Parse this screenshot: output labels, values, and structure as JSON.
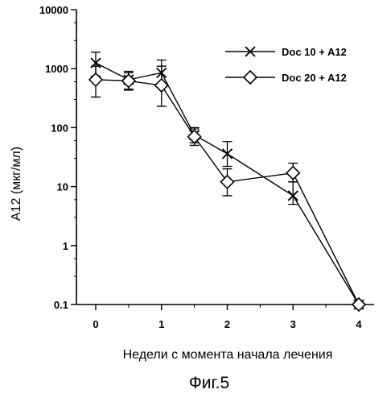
{
  "chart_data": {
    "type": "line",
    "x_ticks": [
      "0",
      "1",
      "2",
      "3",
      "4"
    ],
    "y_ticks": [
      {
        "value": 0.1,
        "label": "0.1"
      },
      {
        "value": 1,
        "label": "1"
      },
      {
        "value": 10,
        "label": "10"
      },
      {
        "value": 100,
        "label": "100"
      },
      {
        "value": 1000,
        "label": "1000"
      },
      {
        "value": 10000,
        "label": "10000"
      }
    ],
    "xlim": [
      -0.3,
      4.3
    ],
    "ylim": [
      0.1,
      10000
    ],
    "yscale": "log",
    "xlabel": "Недели с момента начала лечения",
    "ylabel": "А12 (мкг/мл)",
    "caption": "Фиг.5",
    "grid": false,
    "legend_position": "top-right",
    "series": [
      {
        "name": "Doc 10 + A12",
        "marker": "x",
        "x": [
          0,
          0.5,
          1,
          1.5,
          2,
          3,
          4
        ],
        "y": [
          1250,
          650,
          850,
          75,
          36,
          7,
          0.1
        ],
        "err_low": [
          750,
          450,
          500,
          55,
          22,
          5,
          0.1
        ],
        "err_high": [
          1900,
          900,
          1400,
          100,
          58,
          12,
          0.1
        ]
      },
      {
        "name": "Doc 20 + A12",
        "marker": "diamond",
        "x": [
          0,
          0.5,
          1,
          1.5,
          2,
          3,
          4
        ],
        "y": [
          650,
          620,
          520,
          70,
          12,
          17,
          0.1
        ],
        "err_low": [
          330,
          430,
          230,
          50,
          7,
          12,
          0.1
        ],
        "err_high": [
          1100,
          850,
          1100,
          95,
          20,
          25,
          0.1
        ]
      }
    ]
  }
}
